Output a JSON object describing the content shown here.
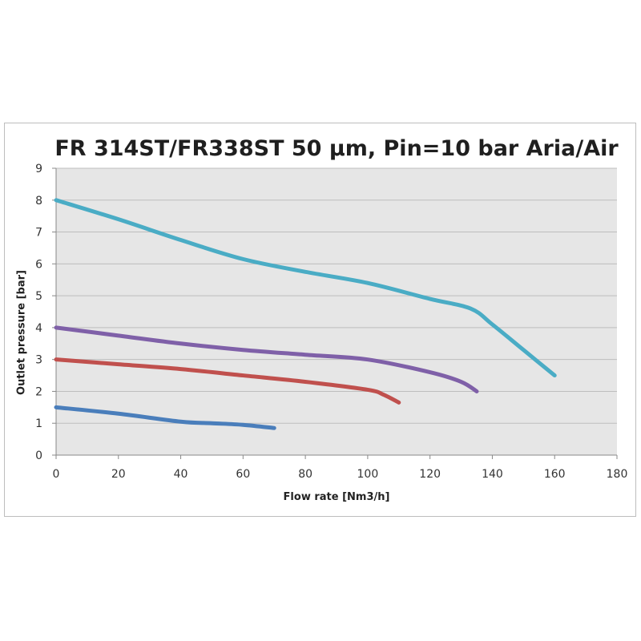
{
  "chart_data": {
    "type": "line",
    "title": "FR 314ST/FR338ST 50 µm, Pin=10 bar   Aria/Air",
    "xlabel": "Flow rate [Nm3/h]",
    "ylabel": "Outlet pressure [bar]",
    "xlim": [
      0,
      180
    ],
    "ylim": [
      0,
      9
    ],
    "xticks": [
      "0",
      "20",
      "40",
      "60",
      "80",
      "100",
      "120",
      "140",
      "160",
      "180"
    ],
    "yticks": [
      "0",
      "1",
      "2",
      "3",
      "4",
      "5",
      "6",
      "7",
      "8",
      "9"
    ],
    "grid": "horizontal",
    "plot_background": "#e6e6e6",
    "series": [
      {
        "color": "#4aacc5",
        "points": [
          [
            0,
            8.0
          ],
          [
            20,
            7.4
          ],
          [
            40,
            6.75
          ],
          [
            60,
            6.15
          ],
          [
            80,
            5.75
          ],
          [
            100,
            5.4
          ],
          [
            120,
            4.9
          ],
          [
            133,
            4.6
          ],
          [
            140,
            4.1
          ],
          [
            150,
            3.3
          ],
          [
            160,
            2.5
          ]
        ]
      },
      {
        "color": "#7f60a8",
        "points": [
          [
            0,
            4.0
          ],
          [
            20,
            3.75
          ],
          [
            40,
            3.5
          ],
          [
            60,
            3.3
          ],
          [
            80,
            3.15
          ],
          [
            100,
            3.0
          ],
          [
            120,
            2.6
          ],
          [
            130,
            2.3
          ],
          [
            135,
            2.0
          ]
        ]
      },
      {
        "color": "#c0504d",
        "points": [
          [
            0,
            3.0
          ],
          [
            20,
            2.85
          ],
          [
            40,
            2.7
          ],
          [
            60,
            2.5
          ],
          [
            80,
            2.3
          ],
          [
            100,
            2.05
          ],
          [
            105,
            1.9
          ],
          [
            110,
            1.65
          ]
        ]
      },
      {
        "color": "#4a7ebb",
        "points": [
          [
            0,
            1.5
          ],
          [
            20,
            1.3
          ],
          [
            40,
            1.05
          ],
          [
            50,
            1.0
          ],
          [
            60,
            0.95
          ],
          [
            70,
            0.85
          ]
        ]
      }
    ]
  }
}
